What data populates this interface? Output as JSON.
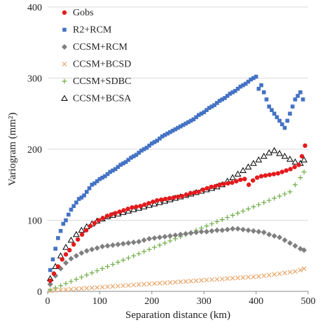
{
  "chart_data": {
    "type": "scatter",
    "title": "",
    "xlabel": "Separation distance (km)",
    "ylabel": "Variogram (mm²)",
    "xlim": [
      0,
      500
    ],
    "ylim": [
      0,
      400
    ],
    "xticks": [
      "0",
      "100",
      "200",
      "300",
      "400",
      "500"
    ],
    "yticks": [
      "0",
      "100",
      "200",
      "300",
      "400"
    ],
    "grid": "horizontal",
    "legend_position": "top-left",
    "series": [
      {
        "name": "Gobs",
        "color": "#e41a1c",
        "marker": "circle",
        "x": [
          5,
          12,
          20,
          28,
          35,
          42,
          50,
          58,
          66,
          74,
          82,
          90,
          98,
          106,
          114,
          122,
          130,
          138,
          146,
          154,
          162,
          170,
          178,
          186,
          194,
          202,
          210,
          218,
          226,
          234,
          242,
          250,
          258,
          266,
          274,
          282,
          290,
          298,
          306,
          314,
          322,
          330,
          338,
          346,
          354,
          362,
          370,
          378,
          386,
          394,
          402,
          410,
          418,
          426,
          434,
          442,
          450,
          458,
          466,
          474,
          482,
          488,
          494
        ],
        "y": [
          15,
          25,
          35,
          45,
          52,
          58,
          66,
          73,
          80,
          86,
          92,
          96,
          100,
          103,
          106,
          108,
          110,
          112,
          114,
          116,
          118,
          119,
          120,
          122,
          124,
          126,
          128,
          129,
          130,
          131,
          132,
          133,
          134,
          136,
          138,
          139,
          140,
          143,
          145,
          147,
          148,
          150,
          151,
          152,
          153,
          155,
          157,
          158,
          150,
          156,
          160,
          162,
          163,
          164,
          165,
          166,
          168,
          170,
          172,
          175,
          178,
          190,
          205
        ]
      },
      {
        "name": "R2+RCM",
        "color": "#4472c4",
        "marker": "square",
        "x": [
          5,
          10,
          15,
          20,
          25,
          30,
          35,
          40,
          45,
          50,
          55,
          60,
          65,
          70,
          75,
          80,
          85,
          90,
          95,
          100,
          105,
          110,
          115,
          120,
          125,
          130,
          135,
          140,
          145,
          150,
          155,
          160,
          165,
          170,
          175,
          180,
          185,
          190,
          195,
          200,
          205,
          210,
          215,
          220,
          225,
          230,
          235,
          240,
          245,
          250,
          255,
          260,
          265,
          270,
          275,
          280,
          285,
          290,
          295,
          300,
          305,
          310,
          315,
          320,
          325,
          330,
          335,
          340,
          345,
          350,
          355,
          360,
          365,
          370,
          375,
          380,
          385,
          390,
          395,
          400,
          405,
          410,
          415,
          420,
          425,
          430,
          435,
          440,
          445,
          450,
          455,
          460,
          465,
          470,
          475,
          480,
          485,
          490
        ],
        "y": [
          30,
          45,
          60,
          75,
          85,
          95,
          100,
          108,
          115,
          120,
          125,
          130,
          132,
          135,
          140,
          145,
          150,
          152,
          155,
          158,
          160,
          162,
          165,
          168,
          170,
          172,
          175,
          178,
          180,
          182,
          185,
          188,
          190,
          192,
          195,
          198,
          200,
          202,
          205,
          208,
          210,
          212,
          215,
          218,
          220,
          222,
          224,
          226,
          228,
          230,
          232,
          234,
          236,
          238,
          240,
          242,
          245,
          248,
          250,
          252,
          255,
          258,
          260,
          262,
          265,
          268,
          270,
          272,
          275,
          278,
          280,
          282,
          285,
          288,
          290,
          292,
          295,
          298,
          300,
          302,
          285,
          290,
          280,
          270,
          260,
          255,
          250,
          245,
          240,
          235,
          230,
          240,
          250,
          260,
          270,
          275,
          280,
          270
        ]
      },
      {
        "name": "CCSM+RCM",
        "color": "#7f7f7f",
        "marker": "diamond",
        "x": [
          5,
          15,
          25,
          35,
          45,
          55,
          65,
          75,
          85,
          95,
          105,
          115,
          125,
          135,
          145,
          155,
          165,
          175,
          185,
          195,
          205,
          215,
          225,
          235,
          245,
          255,
          265,
          275,
          285,
          295,
          305,
          315,
          325,
          335,
          345,
          355,
          365,
          375,
          385,
          395,
          405,
          415,
          425,
          435,
          445,
          455,
          465,
          475,
          485,
          492
        ],
        "y": [
          10,
          22,
          32,
          40,
          46,
          50,
          54,
          57,
          59,
          61,
          63,
          64,
          65,
          66,
          67,
          68,
          69,
          70,
          72,
          74,
          75,
          76,
          77,
          78,
          79,
          80,
          81,
          82,
          83,
          84,
          84,
          85,
          86,
          86,
          87,
          88,
          88,
          87,
          86,
          85,
          84,
          83,
          80,
          78,
          76,
          72,
          68,
          64,
          60,
          58
        ]
      },
      {
        "name": "CCSM+BCSD",
        "color": "#e8a66a",
        "marker": "x",
        "x": [
          5,
          15,
          25,
          35,
          45,
          55,
          65,
          75,
          85,
          95,
          105,
          115,
          125,
          135,
          145,
          155,
          165,
          175,
          185,
          195,
          205,
          215,
          225,
          235,
          245,
          255,
          265,
          275,
          285,
          295,
          305,
          315,
          325,
          335,
          345,
          355,
          365,
          375,
          385,
          395,
          405,
          415,
          425,
          435,
          445,
          455,
          465,
          475,
          485,
          492
        ],
        "y": [
          1,
          1.5,
          2,
          2.5,
          3,
          3.5,
          4,
          4.5,
          5,
          5.5,
          6,
          6.5,
          7,
          7.5,
          8,
          8.5,
          9,
          9.5,
          10,
          10.5,
          11,
          11.5,
          12,
          12.5,
          13,
          13.5,
          14,
          14.5,
          15,
          15.5,
          16,
          16.5,
          17,
          17.5,
          18,
          18.5,
          19,
          19.5,
          20,
          20.5,
          21,
          22,
          23,
          24,
          25,
          26,
          27,
          28,
          30,
          32
        ]
      },
      {
        "name": "CCSM+SDBC",
        "color": "#70ad47",
        "marker": "plus",
        "x": [
          5,
          15,
          25,
          35,
          45,
          55,
          65,
          75,
          85,
          95,
          105,
          115,
          125,
          135,
          145,
          155,
          165,
          175,
          185,
          195,
          205,
          215,
          225,
          235,
          245,
          255,
          265,
          275,
          285,
          295,
          305,
          315,
          325,
          335,
          345,
          355,
          365,
          375,
          385,
          395,
          405,
          415,
          425,
          435,
          445,
          455,
          465,
          475,
          485,
          492
        ],
        "y": [
          2,
          5,
          8,
          11,
          14,
          17,
          20,
          23,
          26,
          29,
          32,
          35,
          38,
          41,
          44,
          47,
          50,
          53,
          56,
          59,
          62,
          65,
          68,
          71,
          74,
          77,
          80,
          83,
          86,
          89,
          92,
          95,
          98,
          101,
          104,
          107,
          110,
          113,
          116,
          119,
          122,
          125,
          128,
          131,
          134,
          137,
          140,
          150,
          160,
          168
        ]
      },
      {
        "name": "CCSM+BCSA",
        "color": "#000000",
        "marker": "triangle",
        "x": [
          5,
          15,
          25,
          35,
          45,
          55,
          65,
          75,
          85,
          95,
          105,
          115,
          125,
          135,
          145,
          155,
          165,
          175,
          185,
          195,
          205,
          215,
          225,
          235,
          245,
          255,
          265,
          275,
          285,
          295,
          305,
          315,
          325,
          335,
          345,
          355,
          365,
          375,
          385,
          395,
          405,
          415,
          425,
          435,
          445,
          455,
          465,
          475,
          485,
          492
        ],
        "y": [
          18,
          35,
          50,
          62,
          72,
          80,
          86,
          91,
          95,
          99,
          102,
          105,
          107,
          109,
          111,
          113,
          115,
          117,
          119,
          121,
          123,
          125,
          127,
          129,
          131,
          133,
          135,
          137,
          139,
          141,
          143,
          145,
          147,
          150,
          155,
          160,
          165,
          170,
          175,
          180,
          185,
          190,
          195,
          198,
          194,
          190,
          186,
          182,
          180,
          185
        ]
      }
    ]
  }
}
